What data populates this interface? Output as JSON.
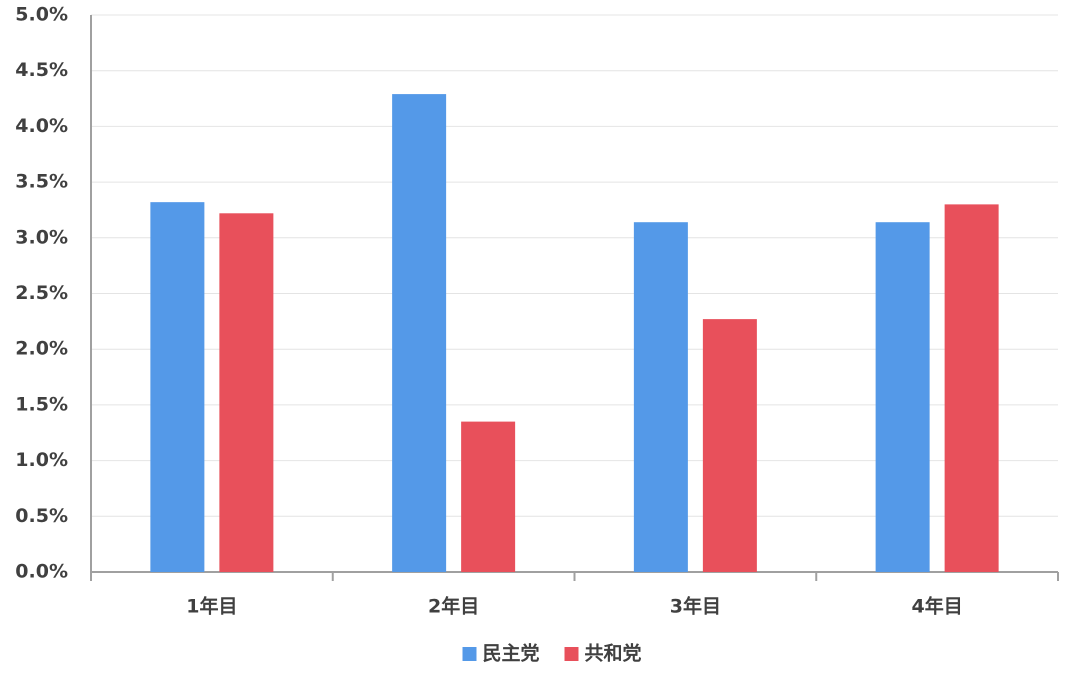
{
  "chart_data": {
    "type": "bar",
    "categories": [
      "1年目",
      "2年目",
      "3年目",
      "4年目"
    ],
    "series": [
      {
        "name": "民主党",
        "color": "#5499e8",
        "values": [
          3.32,
          4.29,
          3.14,
          3.14
        ]
      },
      {
        "name": "共和党",
        "color": "#e8505b",
        "values": [
          3.22,
          1.35,
          2.27,
          3.3
        ]
      }
    ],
    "ylim": [
      0,
      5
    ],
    "yticks": [
      {
        "value": 0,
        "label": "0.0%"
      },
      {
        "value": 0.5,
        "label": "0.5%"
      },
      {
        "value": 1,
        "label": "1.0%"
      },
      {
        "value": 1.5,
        "label": "1.5%"
      },
      {
        "value": 2,
        "label": "2.0%"
      },
      {
        "value": 2.5,
        "label": "2.5%"
      },
      {
        "value": 3,
        "label": "3.0%"
      },
      {
        "value": 3.5,
        "label": "3.5%"
      },
      {
        "value": 4,
        "label": "4.0%"
      },
      {
        "value": 4.5,
        "label": "4.5%"
      },
      {
        "value": 5,
        "label": "5.0%"
      }
    ],
    "grid": true,
    "legend": "bottom"
  }
}
